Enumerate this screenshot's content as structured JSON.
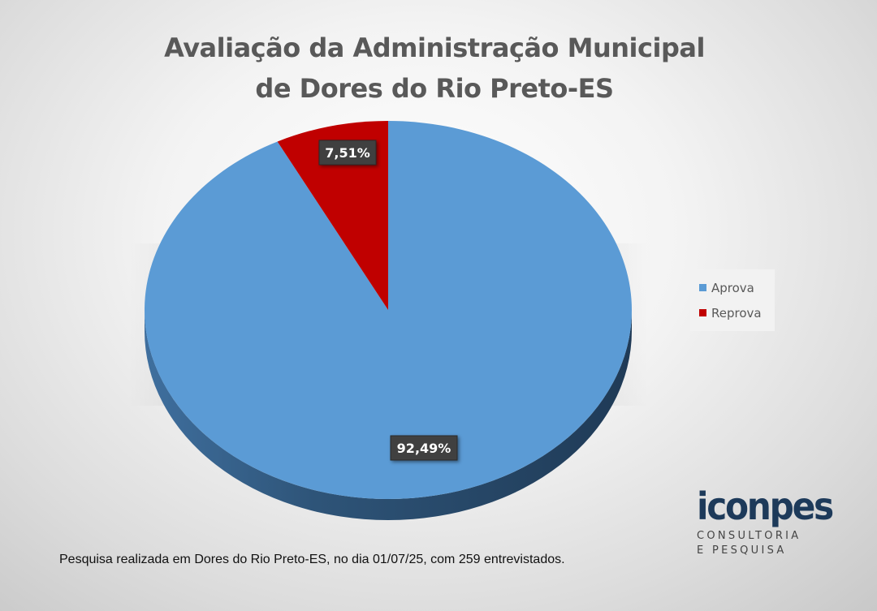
{
  "chart_data": {
    "type": "pie",
    "title_lines": [
      "Avaliação da Administração Municipal",
      "de Dores do Rio Preto-ES"
    ],
    "categories": [
      "Aprova",
      "Reprova"
    ],
    "values": [
      92.49,
      7.51
    ],
    "data_labels": [
      "92,49%",
      "7,51%"
    ],
    "colors": [
      "#5b9bd5",
      "#c00000"
    ],
    "legend_position": "right"
  },
  "footnote": "Pesquisa realizada em Dores do Rio Preto-ES, no dia 01/07/25, com 259 entrevistados.",
  "logo": {
    "name": "iconpes",
    "line1": "CONSULTORIA",
    "line2": "E PESQUISA"
  }
}
